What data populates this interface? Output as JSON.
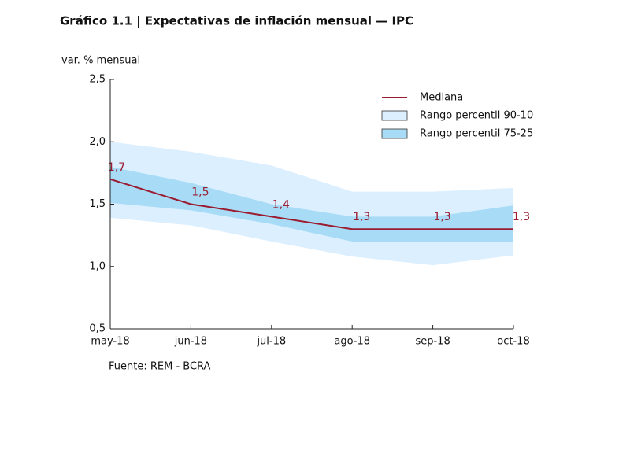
{
  "chart_data": {
    "type": "line-band",
    "title": "Gráfico 1.1 | Expectativas de inflación mensual — IPC",
    "y_label": "var. % mensual",
    "source": "Fuente: REM - BCRA",
    "categories": [
      "may-18",
      "jun-18",
      "jul-18",
      "ago-18",
      "sep-18",
      "oct-18"
    ],
    "bands": [
      {
        "name": "Rango percentil 90-10",
        "color": "#dcefff",
        "upper": [
          2.0,
          1.92,
          1.81,
          1.6,
          1.6,
          1.63
        ],
        "lower": [
          1.39,
          1.33,
          1.2,
          1.08,
          1.01,
          1.09
        ]
      },
      {
        "name": "Rango percentil 75-25",
        "color": "#a8dcf6",
        "upper": [
          1.8,
          1.67,
          1.5,
          1.4,
          1.4,
          1.49
        ],
        "lower": [
          1.51,
          1.45,
          1.34,
          1.2,
          1.2,
          1.2
        ]
      }
    ],
    "series": [
      {
        "name": "Mediana",
        "color": "#9b1b30",
        "values": [
          1.7,
          1.5,
          1.4,
          1.3,
          1.3,
          1.3
        ],
        "value_labels": [
          "1,7",
          "1,5",
          "1,4",
          "1,3",
          "1,3",
          "1,3"
        ]
      }
    ],
    "ylim": [
      0.5,
      2.5
    ],
    "yticks": [
      {
        "value": 0.5,
        "label": "0,5"
      },
      {
        "value": 1.0,
        "label": "1,0"
      },
      {
        "value": 1.5,
        "label": "1,5"
      },
      {
        "value": 2.0,
        "label": "2,0"
      },
      {
        "value": 2.5,
        "label": "2,5"
      }
    ],
    "grid": false,
    "legend": "top-right"
  }
}
